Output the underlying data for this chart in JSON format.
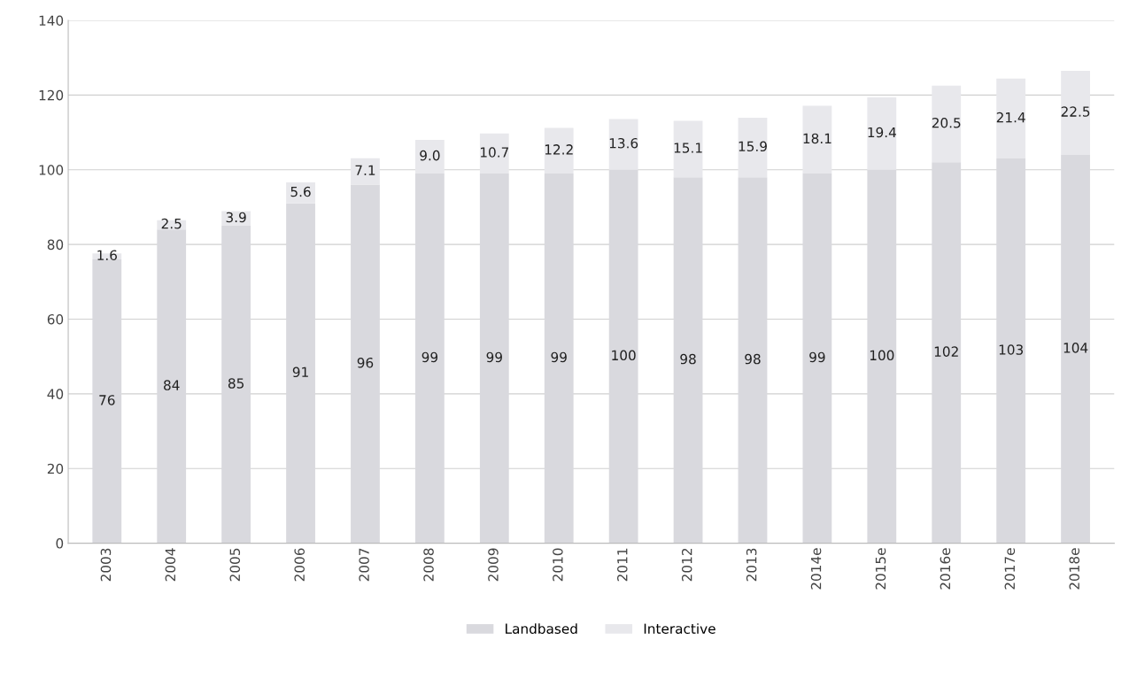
{
  "chart_data": {
    "type": "bar",
    "stacked": true,
    "categories": [
      "2003",
      "2004",
      "2005",
      "2006",
      "2007",
      "2008",
      "2009",
      "2010",
      "2011",
      "2012",
      "2013",
      "2014e",
      "2015e",
      "2016e",
      "2017e",
      "2018e"
    ],
    "series": [
      {
        "name": "Landbased",
        "color": "#d9d9de",
        "values": [
          76,
          84,
          85,
          91,
          96,
          99,
          99,
          99,
          100,
          98,
          98,
          99,
          100,
          102,
          103,
          104
        ]
      },
      {
        "name": "Interactive",
        "color": "#e8e8ec",
        "values": [
          1.6,
          2.5,
          3.9,
          5.6,
          7.1,
          9.0,
          10.7,
          12.2,
          13.6,
          15.1,
          15.9,
          18.1,
          19.4,
          20.5,
          21.4,
          22.5
        ],
        "value_labels": [
          "1.6",
          "2.5",
          "3.9",
          "5.6",
          "7.1",
          "9.0",
          "10.7",
          "12.2",
          "13.6",
          "15.1",
          "15.9",
          "18.1",
          "19.4",
          "20.5",
          "21.4",
          "22.5"
        ]
      }
    ],
    "data_labels": true,
    "ylim": [
      0,
      140
    ],
    "yticks": [
      0,
      20,
      40,
      60,
      80,
      100,
      120,
      140
    ],
    "grid": "y",
    "legend": "bottom"
  }
}
